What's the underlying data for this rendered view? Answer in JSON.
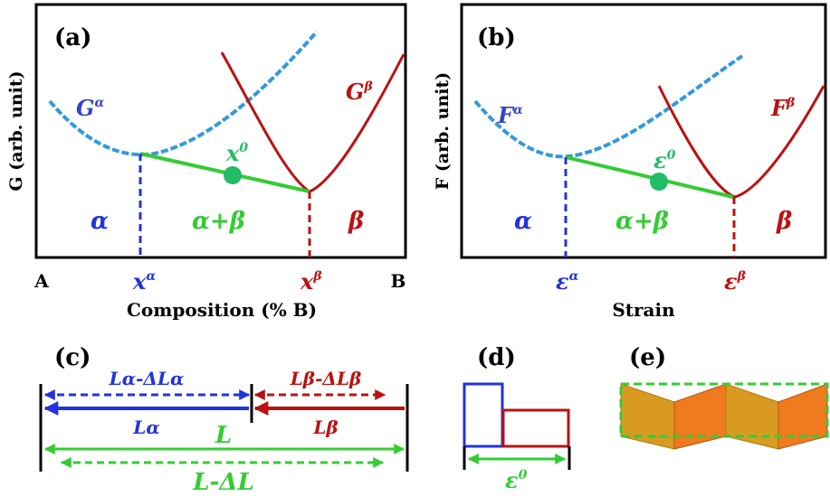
{
  "panel_a": {
    "label": "(a)",
    "ylabel": "G (arb. unit)",
    "xlabel": "Composition (% B)",
    "x_left": "A",
    "x_right": "B",
    "curve_alpha": {
      "base": "G",
      "sup": "α"
    },
    "curve_beta": {
      "base": "G",
      "sup": "β"
    },
    "point": {
      "base": "x",
      "sup": "0"
    },
    "tick_alpha": {
      "base": "x",
      "sup": "α"
    },
    "tick_beta": {
      "base": "x",
      "sup": "β"
    },
    "region_alpha": "α",
    "region_mix": "α+β",
    "region_beta": "β"
  },
  "panel_b": {
    "label": "(b)",
    "ylabel": "F (arb. unit)",
    "xlabel": "Strain",
    "curve_alpha": {
      "base": "F",
      "sup": "α"
    },
    "curve_beta": {
      "base": "F",
      "sup": "β"
    },
    "point": {
      "base": "ε",
      "sup": "0"
    },
    "tick_alpha": {
      "base": "ε",
      "sup": "α"
    },
    "tick_beta": {
      "base": "ε",
      "sup": "β"
    },
    "region_alpha": "α",
    "region_mix": "α+β",
    "region_beta": "β"
  },
  "panel_c": {
    "label": "(c)",
    "top_left": "Lα-ΔLα",
    "top_right": "Lβ-ΔLβ",
    "mid_left": "Lα",
    "mid_right": "Lβ",
    "total": "L",
    "total_dashed": "L-ΔL"
  },
  "panel_d": {
    "label": "(d)",
    "strain": {
      "base": "ε",
      "sup": "0"
    }
  },
  "panel_e": {
    "label": "(e)"
  },
  "colors": {
    "alpha": "#2233dd",
    "alpha_curve": "#3399dd",
    "beta": "#bb1111",
    "mix": "#33cc33",
    "point": "#22bb66",
    "zig_dark": "#d99a22",
    "zig_light": "#f07a1e"
  }
}
